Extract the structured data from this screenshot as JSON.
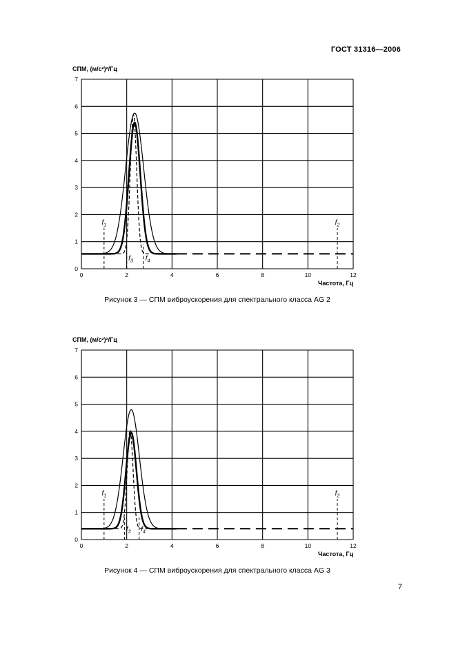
{
  "page": {
    "header": "ГОСТ 31316—2006",
    "page_number": "7"
  },
  "figures": [
    {
      "caption": "Рисунок 3 —  СПМ виброускорения для спектрального класса AG 2"
    },
    {
      "caption": "Рисунок 4 —  СПМ виброускорения для спектрального класса AG 3"
    }
  ],
  "chart_data": [
    {
      "type": "line",
      "xlabel": "Частота, Гц",
      "ylabel": "СПМ, (м/с²)²/Гц",
      "xlim": [
        0,
        12
      ],
      "ylim": [
        0,
        7
      ],
      "x_tick_step": 2,
      "y_tick_step": 1,
      "grid": true,
      "baseline": {
        "level": 0.55,
        "solid_until_x": 4.2,
        "dashed_to_x": 12
      },
      "series": [
        {
          "name": "envelope-outer",
          "style": "solid-thin",
          "base": 0.55,
          "peak": 5.75,
          "center": 2.35,
          "sigma": 0.4,
          "xmin": 0,
          "xmax": 4.2
        },
        {
          "name": "envelope-inner",
          "style": "solid-thick",
          "base": 0.55,
          "peak": 5.4,
          "center": 2.35,
          "sigma": 0.25,
          "xmin": 0,
          "xmax": 4.2
        },
        {
          "name": "narrow-band",
          "style": "dashed",
          "base": 0.55,
          "peak": 5.7,
          "center": 2.3,
          "sigma": 0.14,
          "xmin": 1.6,
          "xmax": 3.0
        }
      ],
      "markers": [
        {
          "base": "f",
          "sub": "1",
          "x": 1.0,
          "line_top": 1.5,
          "label_pos": "above"
        },
        {
          "base": "f",
          "sub": "2",
          "x": 11.3,
          "line_top": 1.5,
          "label_pos": "above"
        },
        {
          "base": "f",
          "sub": "3",
          "x": 2.0,
          "line_top": 0.9,
          "label_pos": "right"
        },
        {
          "base": "f",
          "sub": "4",
          "x": 2.75,
          "line_top": 0.9,
          "label_pos": "right"
        }
      ]
    },
    {
      "type": "line",
      "xlabel": "Частота, Гц",
      "ylabel": "СПМ, (м/с²)²/Гц",
      "xlim": [
        0,
        12
      ],
      "ylim": [
        0,
        7
      ],
      "x_tick_step": 2,
      "y_tick_step": 1,
      "grid": true,
      "baseline": {
        "level": 0.4,
        "solid_until_x": 4.2,
        "dashed_to_x": 12
      },
      "series": [
        {
          "name": "envelope-outer",
          "style": "solid-thin",
          "base": 0.4,
          "peak": 4.8,
          "center": 2.2,
          "sigma": 0.36,
          "xmin": 0,
          "xmax": 4.2
        },
        {
          "name": "envelope-inner",
          "style": "solid-thick",
          "base": 0.4,
          "peak": 3.95,
          "center": 2.2,
          "sigma": 0.23,
          "xmin": 0,
          "xmax": 4.2
        },
        {
          "name": "narrow-band",
          "style": "dashed",
          "base": 0.4,
          "peak": 4.05,
          "center": 2.15,
          "sigma": 0.13,
          "xmin": 1.5,
          "xmax": 2.9
        }
      ],
      "markers": [
        {
          "base": "f",
          "sub": "1",
          "x": 1.0,
          "line_top": 1.5,
          "label_pos": "above"
        },
        {
          "base": "f",
          "sub": "2",
          "x": 11.3,
          "line_top": 1.5,
          "label_pos": "above"
        },
        {
          "base": "f",
          "sub": "3",
          "x": 1.9,
          "line_top": 0.9,
          "label_pos": "right"
        },
        {
          "base": "f",
          "sub": "4",
          "x": 2.55,
          "line_top": 0.9,
          "label_pos": "right"
        }
      ]
    }
  ]
}
